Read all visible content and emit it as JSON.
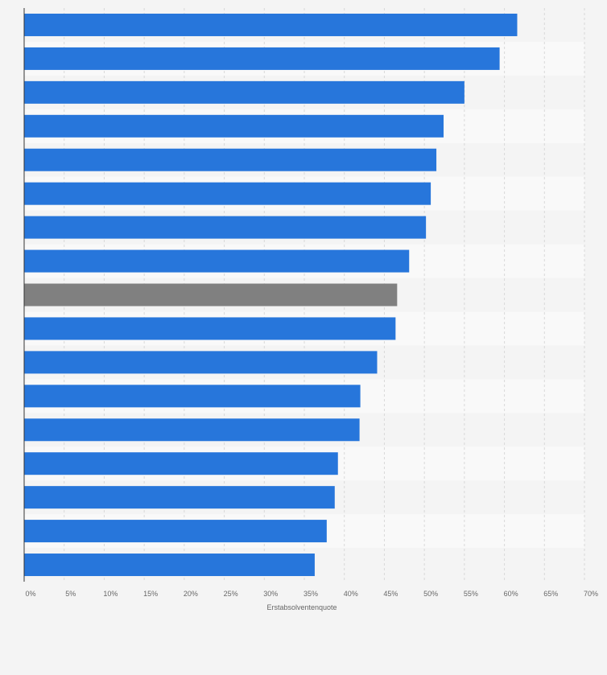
{
  "chart_data": {
    "type": "bar",
    "orientation": "horizontal",
    "title": "",
    "xlabel": "Erstabsolventenquote",
    "ylabel": "",
    "xlim": [
      0,
      70
    ],
    "x_ticks": [
      0,
      5,
      10,
      15,
      20,
      25,
      30,
      35,
      40,
      45,
      50,
      55,
      60,
      65,
      70
    ],
    "tick_suffix": "%",
    "grid": true,
    "categories": [
      "",
      "",
      "",
      "",
      "",
      "",
      "",
      "",
      "",
      "",
      "",
      "",
      "",
      "",
      "",
      "",
      ""
    ],
    "values": [
      61.6,
      59.4,
      55.0,
      52.4,
      51.5,
      50.8,
      50.2,
      48.1,
      46.6,
      46.4,
      44.1,
      42.0,
      41.9,
      39.2,
      38.8,
      37.8,
      36.3
    ],
    "highlight_index": 8,
    "colors": {
      "bar": "#2776db",
      "highlight": "#808080",
      "background": "#f4f4f4",
      "band": "#f9f9f9",
      "grid": "#d9d9d9",
      "axis": "#333333"
    }
  }
}
